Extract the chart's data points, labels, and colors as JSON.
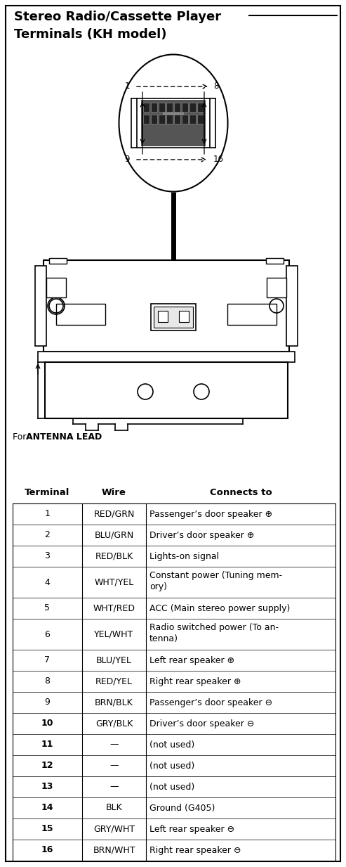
{
  "title_line1": "Stereo Radio/Cassette Player",
  "title_line2": "Terminals (KH model)",
  "antenna_label_regular": "For ",
  "antenna_label_bold": "ANTENNA LEAD",
  "table_headers": [
    "Terminal",
    "Wire",
    "Connects to"
  ],
  "table_data": [
    [
      "1",
      "RED/GRN",
      "Passenger’s door speaker ⊕"
    ],
    [
      "2",
      "BLU/GRN",
      "Driver’s door speaker ⊕"
    ],
    [
      "3",
      "RED/BLK",
      "Lights-on signal"
    ],
    [
      "4",
      "WHT/YEL",
      "Constant power (Tuning mem-\nory)"
    ],
    [
      "5",
      "WHT/RED",
      "ACC (Main stereo power supply)"
    ],
    [
      "6",
      "YEL/WHT",
      "Radio switched power (To an-\ntenna)"
    ],
    [
      "7",
      "BLU/YEL",
      "Left rear speaker ⊕"
    ],
    [
      "8",
      "RED/YEL",
      "Right rear speaker ⊕"
    ],
    [
      "9",
      "BRN/BLK",
      "Passenger’s door speaker ⊖"
    ],
    [
      "10",
      "GRY/BLK",
      "Driver’s door speaker ⊖"
    ],
    [
      "11",
      "—",
      "(not used)"
    ],
    [
      "12",
      "—",
      "(not used)"
    ],
    [
      "13",
      "—",
      "(not used)"
    ],
    [
      "14",
      "BLK",
      "Ground (G405)"
    ],
    [
      "15",
      "GRY/WHT",
      "Left rear speaker ⊖"
    ],
    [
      "16",
      "BRN/WHT",
      "Right rear speaker ⊖"
    ]
  ],
  "bg_color": "#ffffff",
  "border_color": "#000000",
  "text_color": "#000000",
  "fig_w": 4.93,
  "fig_h": 12.33,
  "dpi": 100
}
